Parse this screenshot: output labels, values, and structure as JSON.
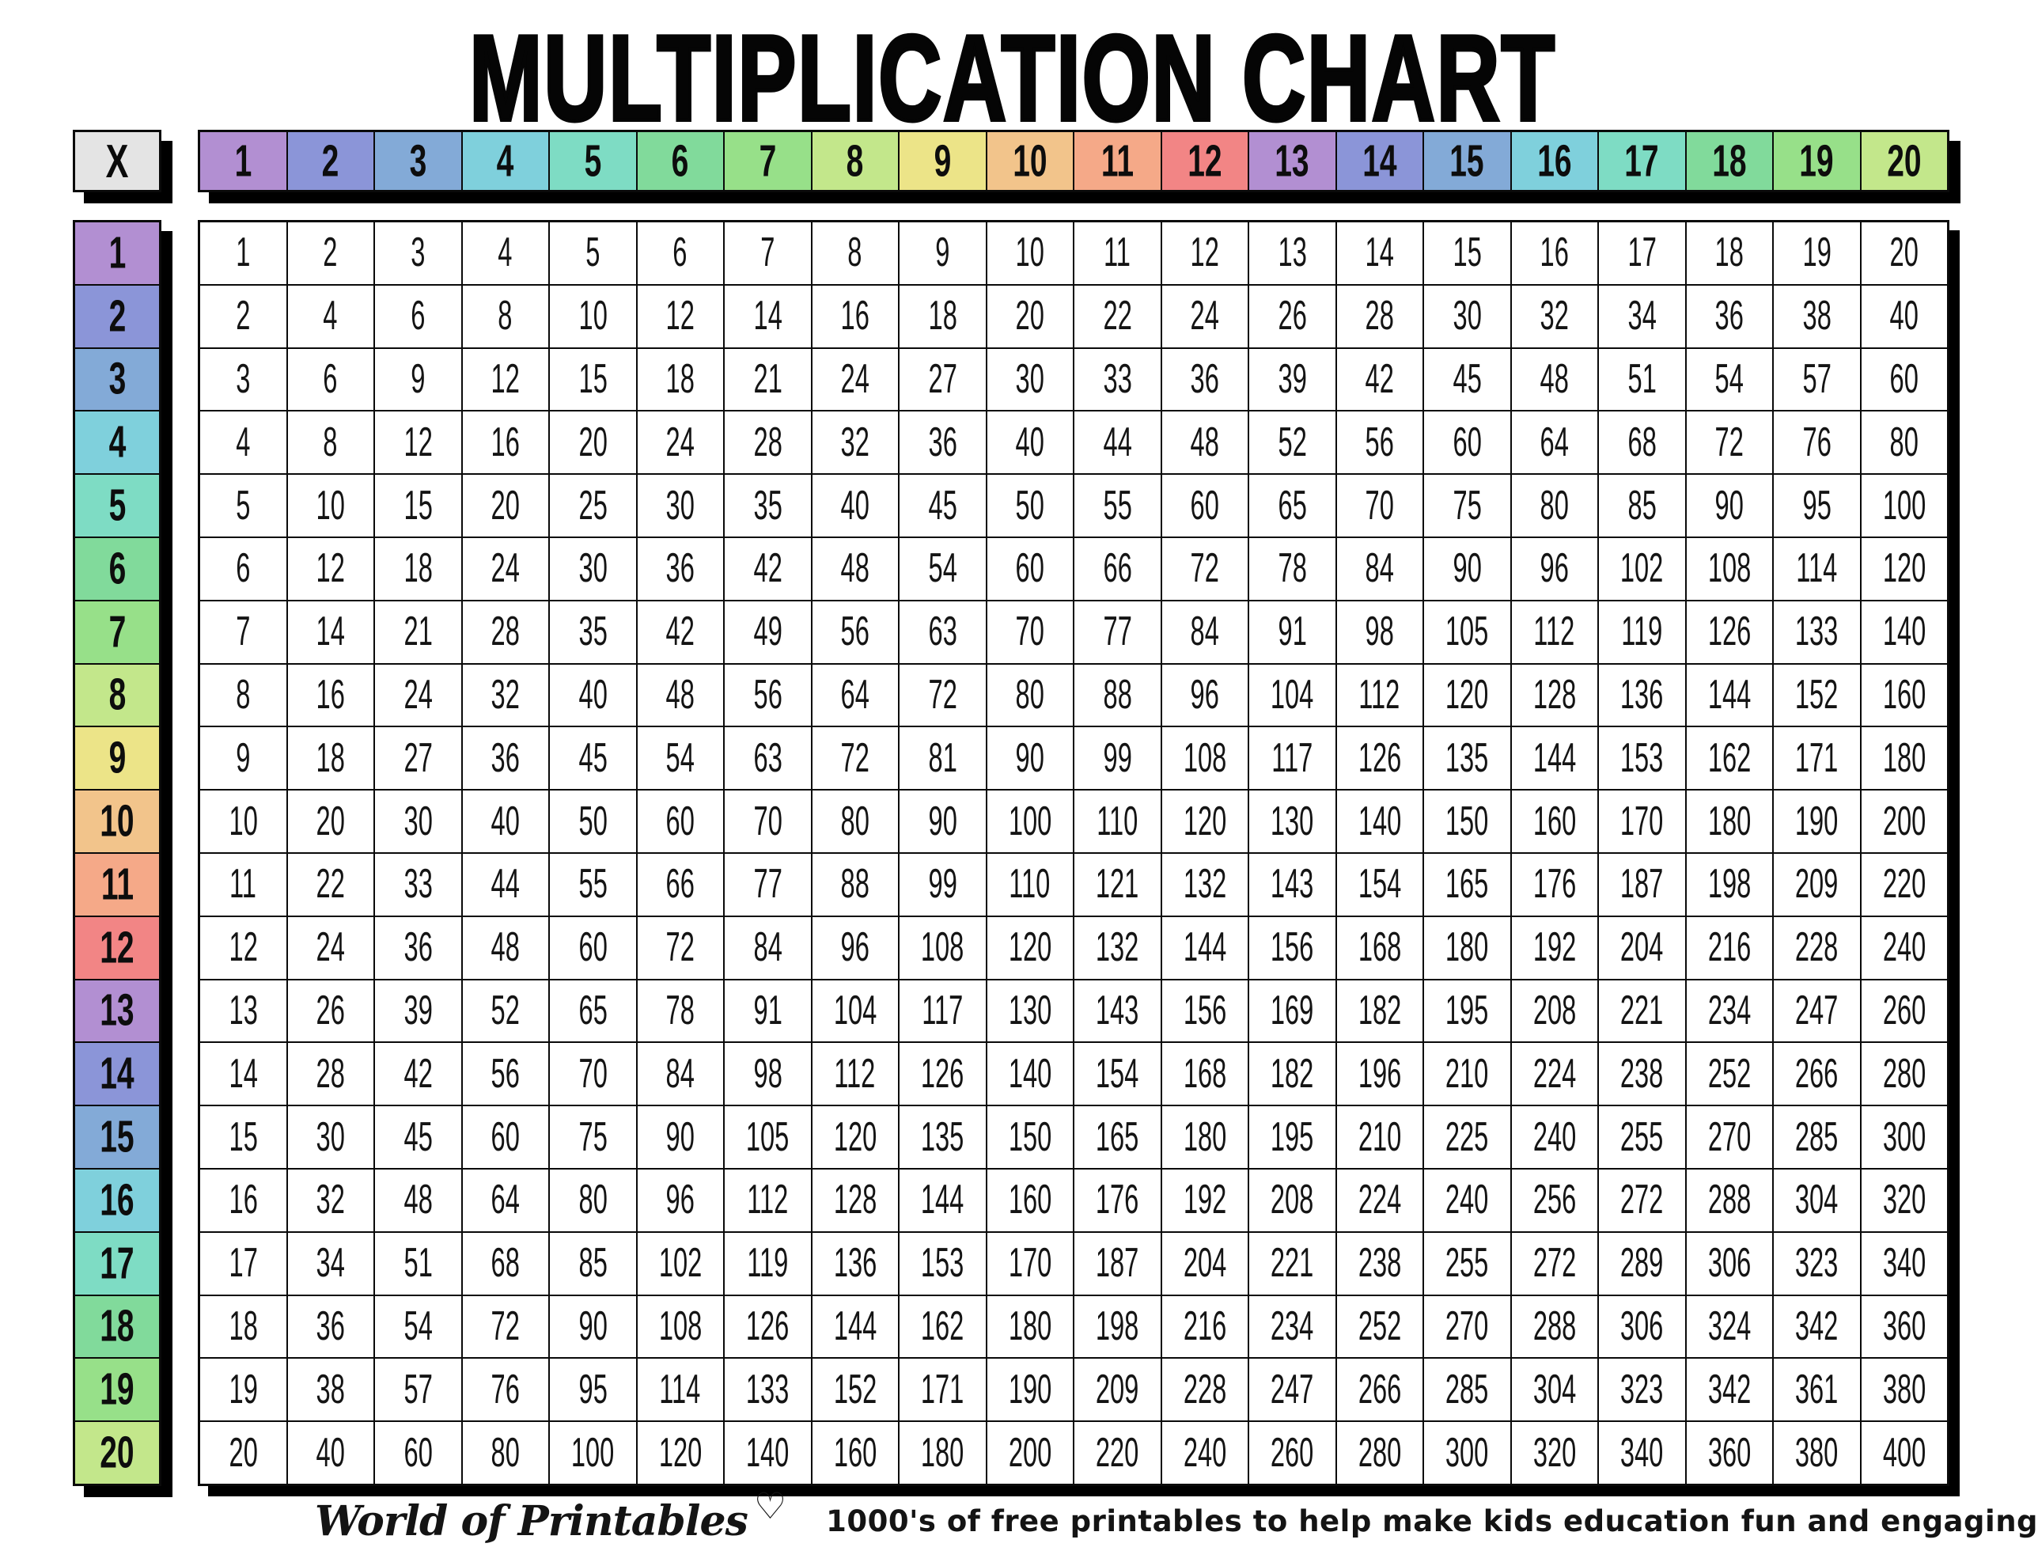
{
  "title": "MULTIPLICATION CHART",
  "corner_label": "X",
  "header_numbers": [
    1,
    2,
    3,
    4,
    5,
    6,
    7,
    8,
    9,
    10,
    11,
    12,
    13,
    14,
    15,
    16,
    17,
    18,
    19,
    20
  ],
  "row_numbers": [
    1,
    2,
    3,
    4,
    5,
    6,
    7,
    8,
    9,
    10,
    11,
    12,
    13,
    14,
    15,
    16,
    17,
    18,
    19,
    20
  ],
  "grid": [
    [
      1,
      2,
      3,
      4,
      5,
      6,
      7,
      8,
      9,
      10,
      11,
      12,
      13,
      14,
      15,
      16,
      17,
      18,
      19,
      20
    ],
    [
      2,
      4,
      6,
      8,
      10,
      12,
      14,
      16,
      18,
      20,
      22,
      24,
      26,
      28,
      30,
      32,
      34,
      36,
      38,
      40
    ],
    [
      3,
      6,
      9,
      12,
      15,
      18,
      21,
      24,
      27,
      30,
      33,
      36,
      39,
      42,
      45,
      48,
      51,
      54,
      57,
      60
    ],
    [
      4,
      8,
      12,
      16,
      20,
      24,
      28,
      32,
      36,
      40,
      44,
      48,
      52,
      56,
      60,
      64,
      68,
      72,
      76,
      80
    ],
    [
      5,
      10,
      15,
      20,
      25,
      30,
      35,
      40,
      45,
      50,
      55,
      60,
      65,
      70,
      75,
      80,
      85,
      90,
      95,
      100
    ],
    [
      6,
      12,
      18,
      24,
      30,
      36,
      42,
      48,
      54,
      60,
      66,
      72,
      78,
      84,
      90,
      96,
      102,
      108,
      114,
      120
    ],
    [
      7,
      14,
      21,
      28,
      35,
      42,
      49,
      56,
      63,
      70,
      77,
      84,
      91,
      98,
      105,
      112,
      119,
      126,
      133,
      140
    ],
    [
      8,
      16,
      24,
      32,
      40,
      48,
      56,
      64,
      72,
      80,
      88,
      96,
      104,
      112,
      120,
      128,
      136,
      144,
      152,
      160
    ],
    [
      9,
      18,
      27,
      36,
      45,
      54,
      63,
      72,
      81,
      90,
      99,
      108,
      117,
      126,
      135,
      144,
      153,
      162,
      171,
      180
    ],
    [
      10,
      20,
      30,
      40,
      50,
      60,
      70,
      80,
      90,
      100,
      110,
      120,
      130,
      140,
      150,
      160,
      170,
      180,
      190,
      200
    ],
    [
      11,
      22,
      33,
      44,
      55,
      66,
      77,
      88,
      99,
      110,
      121,
      132,
      143,
      154,
      165,
      176,
      187,
      198,
      209,
      220
    ],
    [
      12,
      24,
      36,
      48,
      60,
      72,
      84,
      96,
      108,
      120,
      132,
      144,
      156,
      168,
      180,
      192,
      204,
      216,
      228,
      240
    ],
    [
      13,
      26,
      39,
      52,
      65,
      78,
      91,
      104,
      117,
      130,
      143,
      156,
      169,
      182,
      195,
      208,
      221,
      234,
      247,
      260
    ],
    [
      14,
      28,
      42,
      56,
      70,
      84,
      98,
      112,
      126,
      140,
      154,
      168,
      182,
      196,
      210,
      224,
      238,
      252,
      266,
      280
    ],
    [
      15,
      30,
      45,
      60,
      75,
      90,
      105,
      120,
      135,
      150,
      165,
      180,
      195,
      210,
      225,
      240,
      255,
      270,
      285,
      300
    ],
    [
      16,
      32,
      48,
      64,
      80,
      96,
      112,
      128,
      144,
      160,
      176,
      192,
      208,
      224,
      240,
      256,
      272,
      288,
      304,
      320
    ],
    [
      17,
      34,
      51,
      68,
      85,
      102,
      119,
      136,
      153,
      170,
      187,
      204,
      221,
      238,
      255,
      272,
      289,
      306,
      323,
      340
    ],
    [
      18,
      36,
      54,
      72,
      90,
      108,
      126,
      144,
      162,
      180,
      198,
      216,
      234,
      252,
      270,
      288,
      306,
      324,
      342,
      360
    ],
    [
      19,
      38,
      57,
      76,
      95,
      114,
      133,
      152,
      171,
      190,
      209,
      228,
      247,
      266,
      285,
      304,
      323,
      342,
      361,
      380
    ],
    [
      20,
      40,
      60,
      80,
      100,
      120,
      140,
      160,
      180,
      200,
      220,
      240,
      260,
      280,
      300,
      320,
      340,
      360,
      380,
      400
    ]
  ],
  "colors": {
    "cycle": [
      "#b28fd2",
      "#8b95d8",
      "#83aad7",
      "#7fd0dc",
      "#7edcc4",
      "#81da9b",
      "#97e089",
      "#c3e78b",
      "#ece488",
      "#f2c48b",
      "#f5a988",
      "#f28585"
    ],
    "corner_bg": "#e4e4e4",
    "cell_bg": "#ffffff",
    "border": "#0a0a0a",
    "shadow": "#000000"
  },
  "footer": {
    "logo_text": "World of Printables",
    "heart_icon": "♡",
    "tagline": "1000's of free printables to help make kids education fun and engaging"
  }
}
